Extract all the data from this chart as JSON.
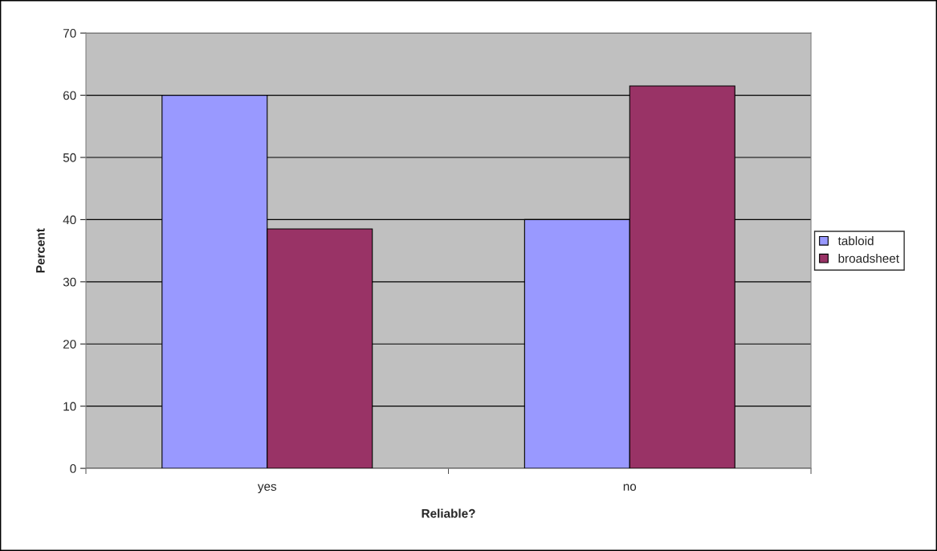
{
  "chart_data": {
    "type": "bar",
    "xlabel": "Reliable?",
    "ylabel": "Percent",
    "categories": [
      "yes",
      "no"
    ],
    "series": [
      {
        "name": "tabloid",
        "color": "#9999ff",
        "values": [
          60,
          40
        ]
      },
      {
        "name": "broadsheet",
        "color": "#993366",
        "values": [
          38.5,
          61.5
        ]
      }
    ],
    "ylim": [
      0,
      70
    ],
    "yticks": [
      0,
      10,
      20,
      30,
      40,
      50,
      60,
      70
    ],
    "grid": "y",
    "legend": "right"
  }
}
